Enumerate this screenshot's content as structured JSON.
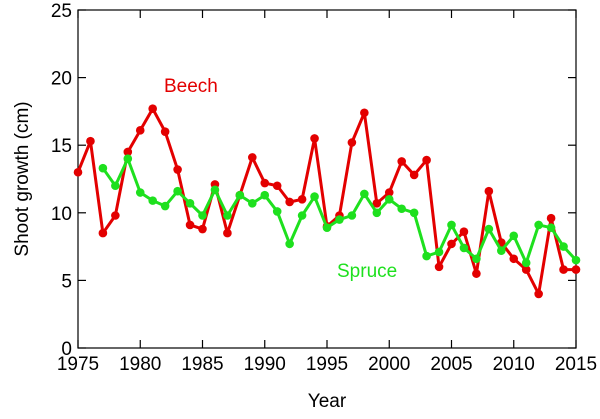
{
  "chart_data": {
    "type": "line",
    "xlabel": "Year",
    "ylabel": "Shoot growth (cm)",
    "xlim": [
      1975,
      2015
    ],
    "ylim": [
      0,
      25
    ],
    "xticks": [
      1975,
      1980,
      1985,
      1990,
      1995,
      2000,
      2005,
      2010,
      2015
    ],
    "yticks": [
      0,
      5,
      10,
      15,
      20,
      25
    ],
    "grid": false,
    "series": [
      {
        "name": "Beech",
        "color": "#e30000",
        "x": [
          1975,
          1976,
          1977,
          1978,
          1979,
          1980,
          1981,
          1982,
          1983,
          1984,
          1985,
          1986,
          1987,
          1988,
          1989,
          1990,
          1991,
          1992,
          1993,
          1994,
          1995,
          1996,
          1997,
          1998,
          1999,
          2000,
          2001,
          2002,
          2003,
          2004,
          2005,
          2006,
          2007,
          2008,
          2009,
          2010,
          2011,
          2012,
          2013,
          2014,
          2015
        ],
        "values": [
          13.0,
          15.3,
          8.5,
          9.8,
          14.5,
          16.1,
          17.7,
          16.0,
          13.2,
          9.1,
          8.8,
          12.1,
          8.5,
          11.3,
          14.1,
          12.2,
          12.0,
          10.8,
          11.0,
          15.5,
          9.0,
          9.8,
          15.2,
          17.4,
          10.7,
          11.5,
          13.8,
          12.8,
          13.9,
          6.0,
          7.7,
          8.6,
          5.5,
          11.6,
          7.8,
          6.6,
          5.8,
          4.0,
          9.6,
          5.8,
          5.8
        ]
      },
      {
        "name": "Spruce",
        "color": "#1ee01e",
        "x": [
          1977,
          1978,
          1979,
          1980,
          1981,
          1982,
          1983,
          1984,
          1985,
          1986,
          1987,
          1988,
          1989,
          1990,
          1991,
          1992,
          1993,
          1994,
          1995,
          1996,
          1997,
          1998,
          1999,
          2000,
          2001,
          2002,
          2003,
          2004,
          2005,
          2006,
          2007,
          2008,
          2009,
          2010,
          2011,
          2012,
          2013,
          2014,
          2015
        ],
        "values": [
          13.3,
          12.0,
          14.0,
          11.5,
          10.9,
          10.5,
          11.6,
          10.7,
          9.8,
          11.7,
          9.8,
          11.3,
          10.7,
          11.3,
          10.1,
          7.7,
          9.8,
          11.2,
          8.9,
          9.5,
          9.8,
          11.4,
          10.0,
          11.0,
          10.3,
          10.0,
          6.8,
          7.1,
          9.1,
          7.4,
          6.6,
          8.8,
          7.2,
          8.3,
          6.3,
          9.1,
          8.9,
          7.5,
          6.5
        ]
      }
    ]
  }
}
